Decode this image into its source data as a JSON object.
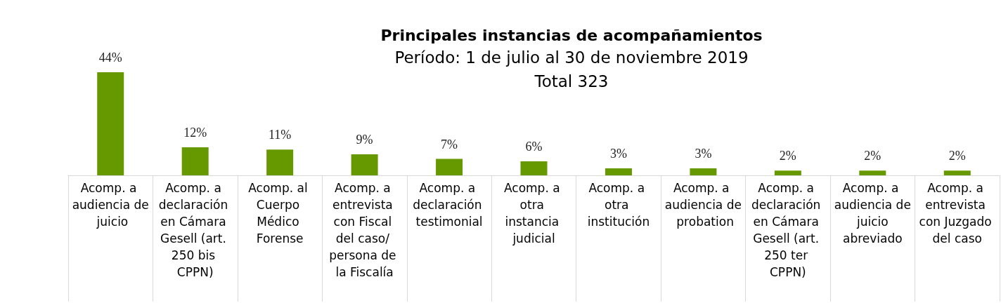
{
  "chart_data": {
    "type": "bar",
    "title": "Principales instancias de acompañamientos",
    "subtitle": "Período: 1 de julio al 30 de noviembre 2019\nTotal 323",
    "categories": [
      "Acomp. a audiencia de juicio",
      "Acomp. a declaración en Cámara Gesell (art. 250 bis CPPN)",
      "Acomp. al Cuerpo Médico Forense",
      "Acomp. a entrevista con Fiscal del caso/ persona de la Fiscalía",
      "Acomp. a declaración testimonial",
      "Acomp. a otra instancia judicial",
      "Acomp. a otra institución",
      "Acomp. a audiencia de probation",
      "Acomp. a declaración en Cámara Gesell (art. 250 ter CPPN)",
      "Acomp. a audiencia de juicio abreviado",
      "Acomp. a entrevista con Juzgado del caso"
    ],
    "values": [
      44,
      12,
      11,
      9,
      7,
      6,
      3,
      3,
      2,
      2,
      2
    ],
    "value_labels": [
      "44%",
      "12%",
      "11%",
      "9%",
      "7%",
      "6%",
      "3%",
      "3%",
      "2%",
      "2%",
      "2%"
    ],
    "color": "#669900",
    "tick_labels": "x"
  }
}
